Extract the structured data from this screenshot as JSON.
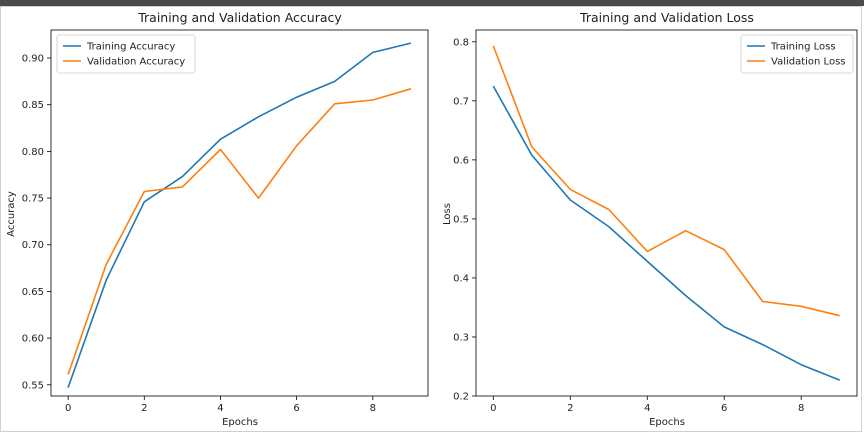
{
  "chart_data": [
    {
      "type": "line",
      "title": "Training and Validation Accuracy",
      "xlabel": "Epochs",
      "ylabel": "Accuracy",
      "xlim": [
        -0.45,
        9.45
      ],
      "ylim": [
        0.538,
        0.93
      ],
      "xticks": [
        0,
        2,
        4,
        6,
        8
      ],
      "yticks": [
        0.55,
        0.6,
        0.65,
        0.7,
        0.75,
        0.8,
        0.85,
        0.9
      ],
      "x": [
        0,
        1,
        2,
        3,
        4,
        5,
        6,
        7,
        8,
        9
      ],
      "legend": "top-left",
      "grid": false,
      "series": [
        {
          "name": "Training Accuracy",
          "color": "#1f77b4",
          "values": [
            0.547,
            0.662,
            0.746,
            0.773,
            0.813,
            0.837,
            0.858,
            0.875,
            0.906,
            0.916
          ]
        },
        {
          "name": "Validation Accuracy",
          "color": "#ff7f0e",
          "values": [
            0.561,
            0.679,
            0.757,
            0.762,
            0.802,
            0.75,
            0.806,
            0.851,
            0.855,
            0.867
          ]
        }
      ]
    },
    {
      "type": "line",
      "title": "Training and Validation Loss",
      "xlabel": "Epochs",
      "ylabel": "Loss",
      "xlim": [
        -0.45,
        9.45
      ],
      "ylim": [
        0.2,
        0.82
      ],
      "xticks": [
        0,
        2,
        4,
        6,
        8
      ],
      "yticks": [
        0.2,
        0.3,
        0.4,
        0.5,
        0.6,
        0.7,
        0.8
      ],
      "x": [
        0,
        1,
        2,
        3,
        4,
        5,
        6,
        7,
        8,
        9
      ],
      "legend": "top-right",
      "grid": false,
      "series": [
        {
          "name": "Training Loss",
          "color": "#1f77b4",
          "values": [
            0.725,
            0.608,
            0.532,
            0.487,
            0.428,
            0.37,
            0.317,
            0.287,
            0.253,
            0.227
          ]
        },
        {
          "name": "Validation Loss",
          "color": "#ff7f0e",
          "values": [
            0.793,
            0.622,
            0.55,
            0.516,
            0.445,
            0.48,
            0.448,
            0.36,
            0.352,
            0.336
          ]
        }
      ]
    }
  ]
}
